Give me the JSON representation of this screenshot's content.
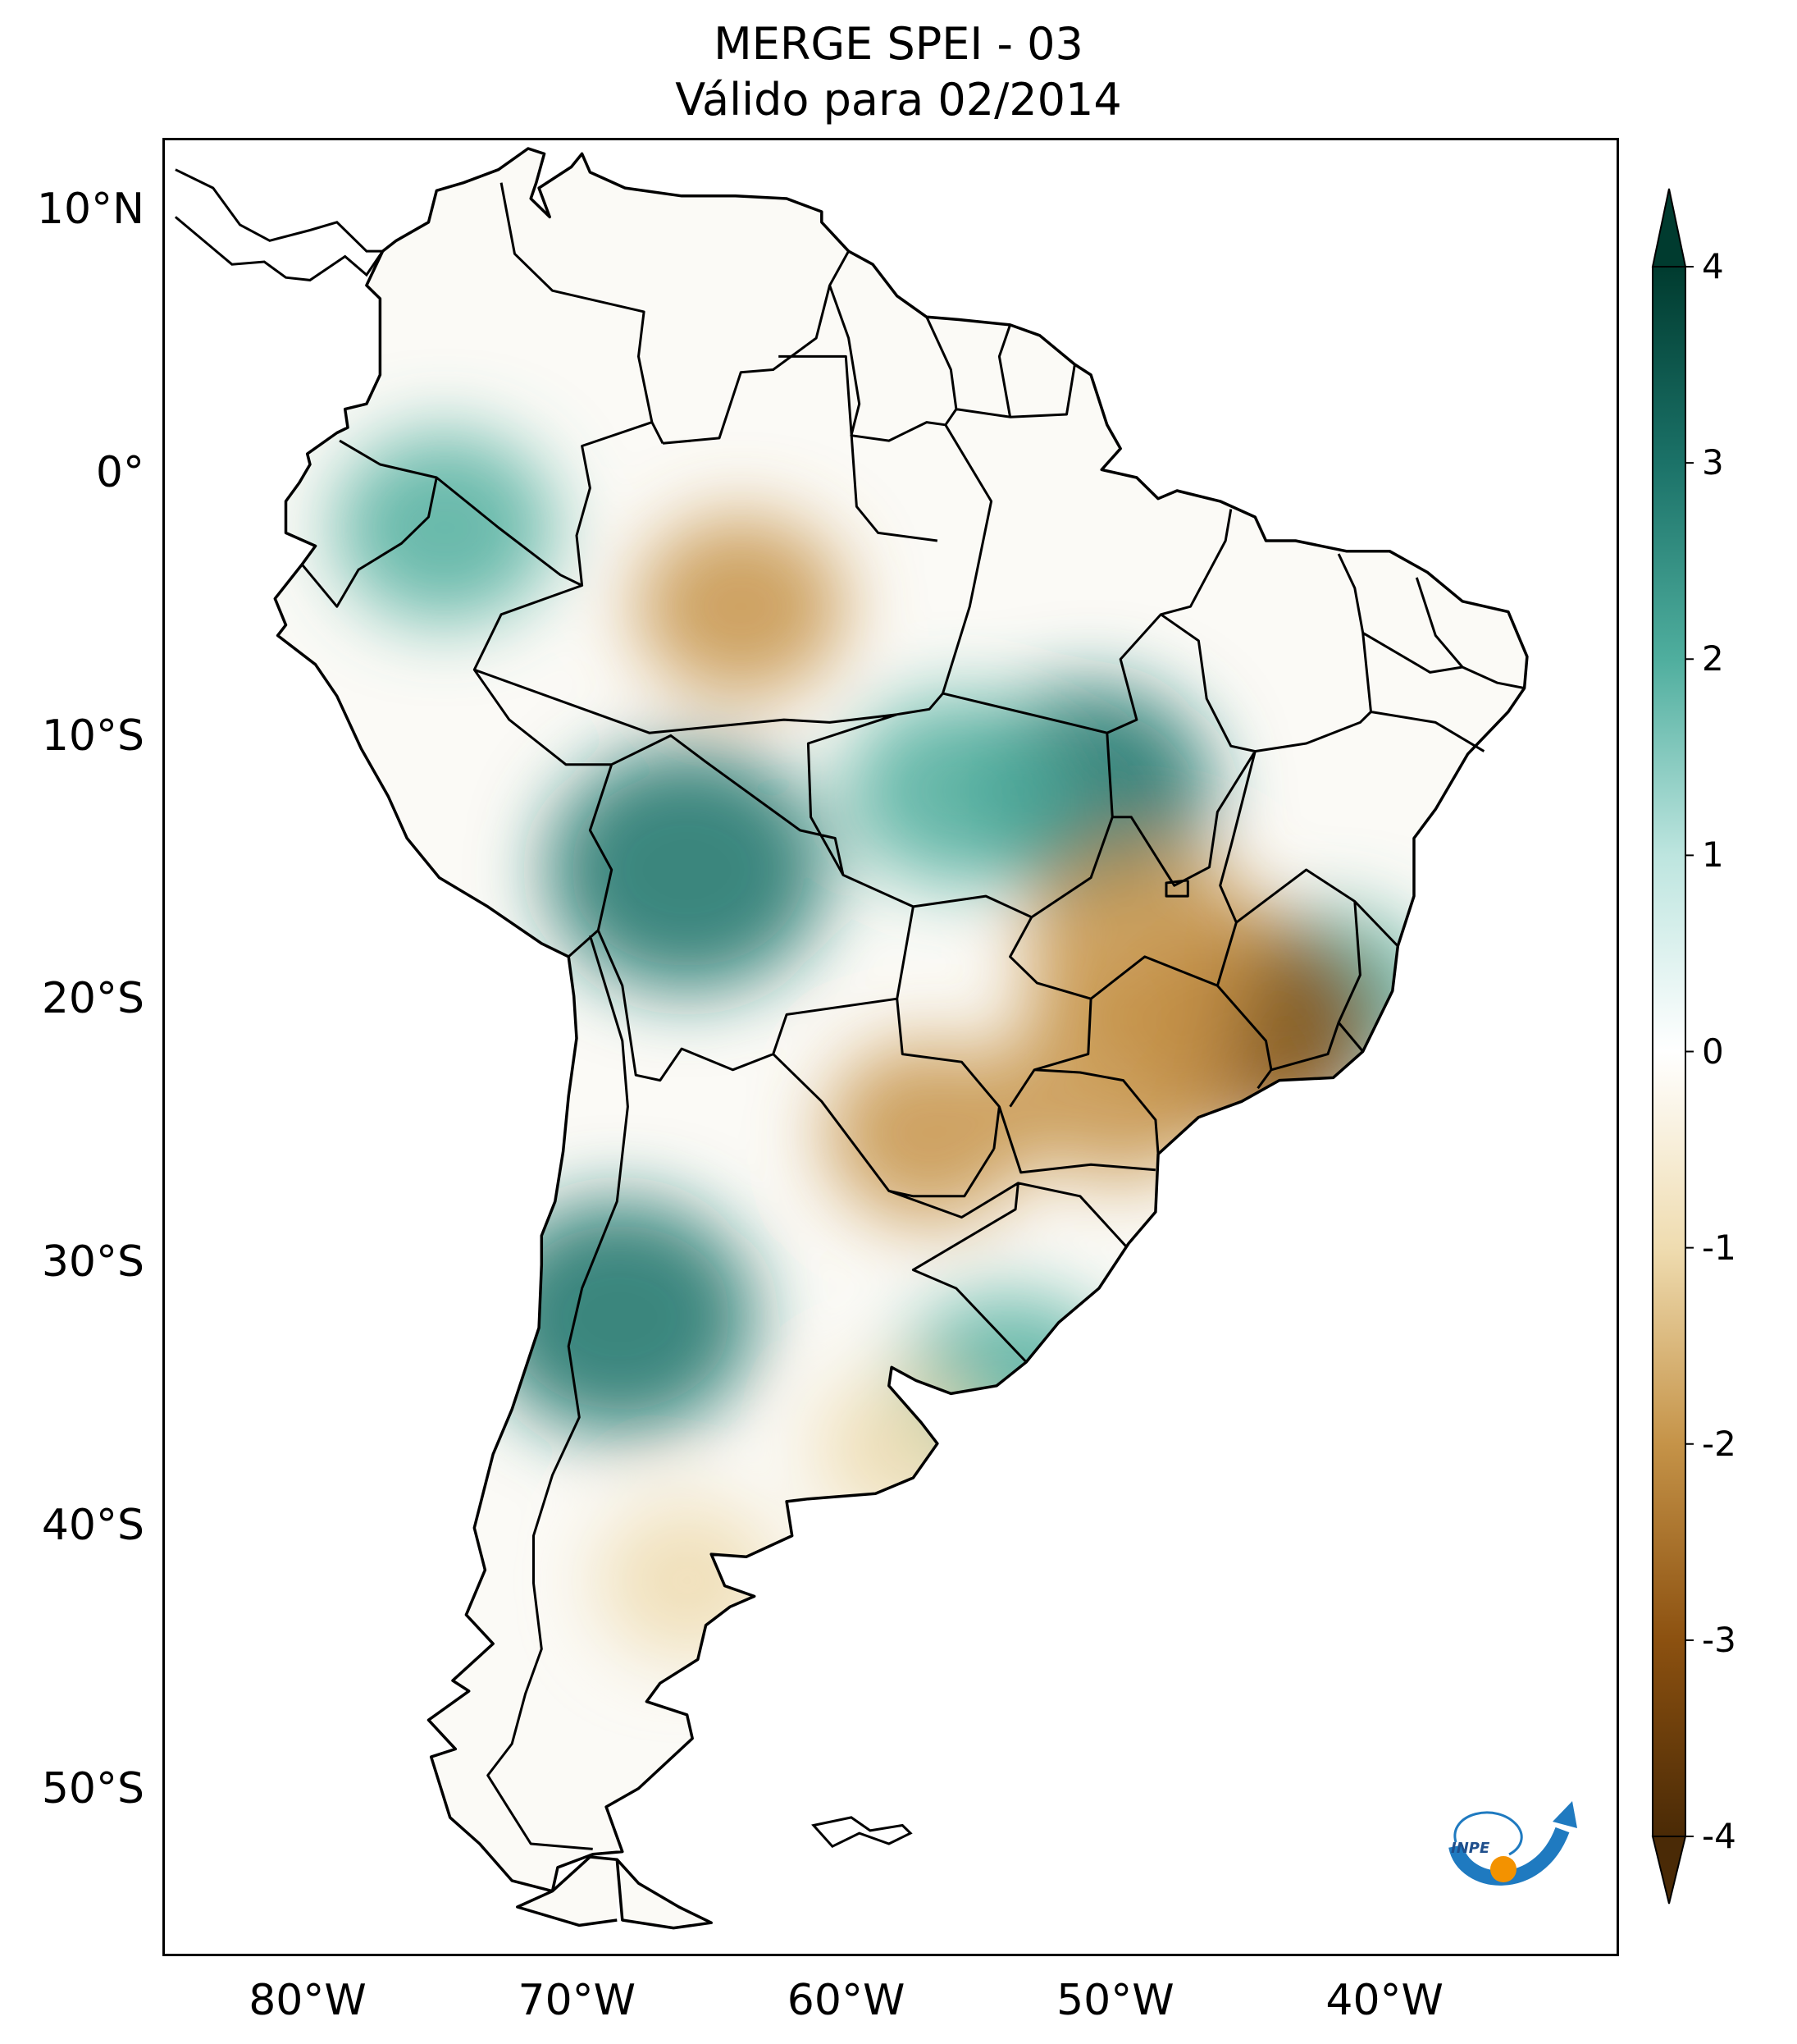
{
  "title": {
    "line1": "MERGE   SPEI - 03",
    "line2": "Válido para 02/2014"
  },
  "map": {
    "region": "South America",
    "variable": "SPEI - 03",
    "lat_ticks": [
      "10°N",
      "0°",
      "10°S",
      "20°S",
      "30°S",
      "40°S",
      "50°S"
    ],
    "lon_ticks": [
      "80°W",
      "70°W",
      "60°W",
      "50°W",
      "40°W"
    ],
    "lat_values": [
      10,
      0,
      -10,
      -20,
      -30,
      -40,
      -50
    ],
    "lon_values": [
      -80,
      -70,
      -60,
      -50,
      -40
    ],
    "extent": {
      "lon_min": -85,
      "lon_max": -30,
      "lat_min": -56,
      "lat_max": 13
    },
    "anomaly_regions": [
      {
        "label": "wet",
        "value": 3.2,
        "lon": -66,
        "lat": -15
      },
      {
        "label": "wet",
        "value": 3.0,
        "lon": -68.5,
        "lat": -32
      },
      {
        "label": "wet",
        "value": 2.5,
        "lon": -51,
        "lat": -12
      },
      {
        "label": "wet",
        "value": 2.3,
        "lon": -54,
        "lat": -35
      },
      {
        "label": "wet",
        "value": 2.0,
        "lon": -75,
        "lat": -2
      },
      {
        "label": "wet",
        "value": 2.0,
        "lon": -56,
        "lat": -12
      },
      {
        "label": "wet",
        "value": 1.8,
        "lon": -42,
        "lat": -20
      },
      {
        "label": "dry",
        "value": -2.6,
        "lon": -45,
        "lat": -21
      },
      {
        "label": "dry",
        "value": -2.4,
        "lon": -49,
        "lat": -18
      },
      {
        "label": "dry",
        "value": -2.2,
        "lon": -50,
        "lat": -23
      },
      {
        "label": "dry",
        "value": -1.8,
        "lon": -64,
        "lat": -5
      },
      {
        "label": "dry",
        "value": -1.8,
        "lon": -57,
        "lat": -25
      },
      {
        "label": "dry",
        "value": -1.3,
        "lon": -66,
        "lat": -42
      },
      {
        "label": "dry",
        "value": -1.2,
        "lon": -58,
        "lat": -37
      }
    ]
  },
  "colorbar": {
    "ticks": [
      "4",
      "3",
      "2",
      "1",
      "0",
      "-1",
      "-2",
      "-3",
      "-4"
    ],
    "min": -4,
    "max": 4,
    "colors": [
      "#4a2a06",
      "#8c5110",
      "#c59348",
      "#efdcb0",
      "#ffffff",
      "#bde5df",
      "#4fae9e",
      "#1b7268",
      "#003b2f"
    ],
    "extend": "both"
  },
  "logo": {
    "text": "INPE",
    "colors": {
      "arrow": "#1f7ac0",
      "dot": "#f39200"
    }
  }
}
